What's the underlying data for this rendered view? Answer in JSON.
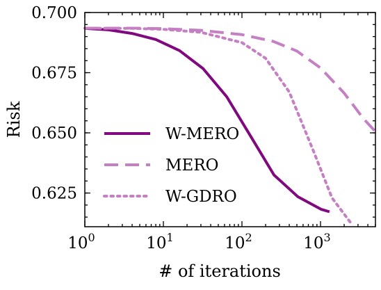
{
  "chart_data": {
    "type": "line",
    "xlabel": "# of iterations",
    "ylabel": "Risk",
    "xscale": "log",
    "xlim": [
      1,
      5000
    ],
    "ylim": [
      0.611,
      0.7
    ],
    "grid": false,
    "legend_position": "center-left",
    "x_ticks": [
      {
        "value": 1,
        "base": "10",
        "exp": "0"
      },
      {
        "value": 10,
        "base": "10",
        "exp": "1"
      },
      {
        "value": 100,
        "base": "10",
        "exp": "2"
      },
      {
        "value": 1000,
        "base": "10",
        "exp": "3"
      }
    ],
    "y_ticks": [
      {
        "value": 0.625,
        "label": "0.625"
      },
      {
        "value": 0.65,
        "label": "0.650"
      },
      {
        "value": 0.675,
        "label": "0.675"
      },
      {
        "value": 0.7,
        "label": "0.700"
      }
    ],
    "series": [
      {
        "name": "W-MERO",
        "color": "#80097f",
        "style": "solid",
        "points": [
          [
            1,
            0.6934
          ],
          [
            2,
            0.6928
          ],
          [
            4,
            0.6913
          ],
          [
            8,
            0.6888
          ],
          [
            16,
            0.6842
          ],
          [
            32,
            0.6767
          ],
          [
            64,
            0.665
          ],
          [
            128,
            0.6488
          ],
          [
            256,
            0.6325
          ],
          [
            512,
            0.6235
          ],
          [
            1024,
            0.6182
          ],
          [
            1300,
            0.6172
          ]
        ]
      },
      {
        "name": "MERO",
        "color": "#c57fc3",
        "style": "dashed",
        "points": [
          [
            1,
            0.6935
          ],
          [
            4,
            0.6935
          ],
          [
            10,
            0.6933
          ],
          [
            30,
            0.6926
          ],
          [
            100,
            0.6908
          ],
          [
            250,
            0.688
          ],
          [
            500,
            0.684
          ],
          [
            1000,
            0.677
          ],
          [
            2000,
            0.6665
          ],
          [
            3500,
            0.656
          ],
          [
            5000,
            0.6505
          ]
        ]
      },
      {
        "name": "W-GDRO",
        "color": "#c57fc3",
        "style": "dotted",
        "points": [
          [
            1,
            0.6935
          ],
          [
            4,
            0.6934
          ],
          [
            10,
            0.693
          ],
          [
            30,
            0.6918
          ],
          [
            100,
            0.6875
          ],
          [
            200,
            0.681
          ],
          [
            400,
            0.667
          ],
          [
            800,
            0.643
          ],
          [
            1400,
            0.623
          ],
          [
            2500,
            0.612
          ]
        ]
      }
    ]
  }
}
